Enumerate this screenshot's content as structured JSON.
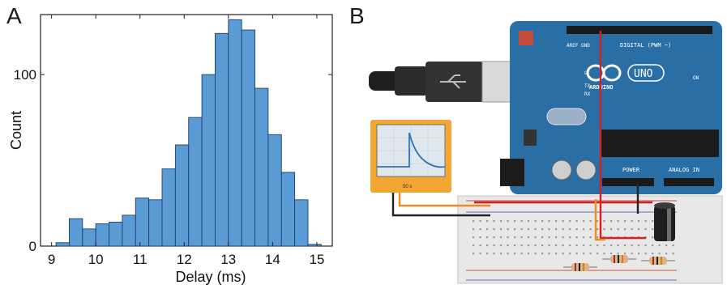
{
  "panel_a": {
    "letter": "A",
    "chart_data": {
      "type": "bar",
      "xlabel": "Delay (ms)",
      "ylabel": "Count",
      "xlim": [
        8.75,
        15.35
      ],
      "ylim": [
        0,
        135
      ],
      "x_ticks": [
        "9",
        "10",
        "11",
        "12",
        "13",
        "14",
        "15"
      ],
      "x_tick_values": [
        9,
        10,
        11,
        12,
        13,
        14,
        15
      ],
      "y_ticks": [
        "0",
        "100"
      ],
      "y_tick_values": [
        0,
        100
      ],
      "bin_width": 0.3,
      "bins": [
        {
          "x0": 9.1,
          "value": 2
        },
        {
          "x0": 9.4,
          "value": 16
        },
        {
          "x0": 9.7,
          "value": 10
        },
        {
          "x0": 10.0,
          "value": 13
        },
        {
          "x0": 10.3,
          "value": 14
        },
        {
          "x0": 10.6,
          "value": 18
        },
        {
          "x0": 10.9,
          "value": 28
        },
        {
          "x0": 11.2,
          "value": 27
        },
        {
          "x0": 11.5,
          "value": 45
        },
        {
          "x0": 11.8,
          "value": 59
        },
        {
          "x0": 12.1,
          "value": 75
        },
        {
          "x0": 12.4,
          "value": 100
        },
        {
          "x0": 12.7,
          "value": 124
        },
        {
          "x0": 13.0,
          "value": 132
        },
        {
          "x0": 13.3,
          "value": 126
        },
        {
          "x0": 13.6,
          "value": 92
        },
        {
          "x0": 13.9,
          "value": 65
        },
        {
          "x0": 14.2,
          "value": 43
        },
        {
          "x0": 14.5,
          "value": 27
        },
        {
          "x0": 14.8,
          "value": 1
        }
      ],
      "bar_color": "#5b9bd5",
      "bar_edge_color": "#1f3f66"
    }
  },
  "panel_b": {
    "letter": "B",
    "board": {
      "name": "UNO",
      "brand": "ARDUINO",
      "digital_label": "DIGITAL (PWM ~)",
      "power_label": "POWER",
      "analog_label": "ANALOG IN",
      "on_label": "ON",
      "tx_label": "TX",
      "rx_label": "RX",
      "l_label": "L",
      "aref_label": "AREF",
      "gnd_label": "GND",
      "board_color": "#2a6ea6"
    },
    "oscilloscope": {
      "readout": "50 s",
      "frame_color": "#f2a531"
    },
    "wire_colors": {
      "red": "#d32020",
      "orange": "#f08c1e",
      "black": "#222222"
    }
  }
}
